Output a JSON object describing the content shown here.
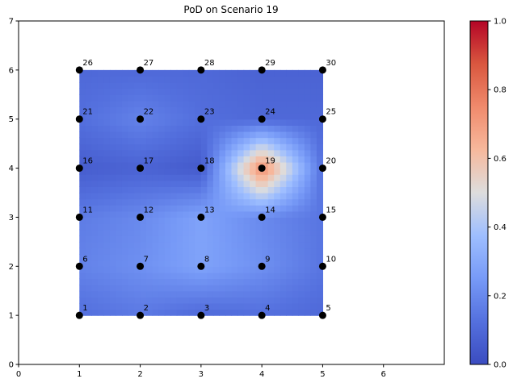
{
  "chart_data": {
    "type": "heatmap",
    "title": "PoD on Scenario 19",
    "xlabel": "",
    "ylabel": "",
    "xlim": [
      0,
      7
    ],
    "ylim": [
      0,
      7
    ],
    "x_ticks": [
      0,
      1,
      2,
      3,
      4,
      5,
      6
    ],
    "y_ticks": [
      0,
      1,
      2,
      3,
      4,
      5,
      6,
      7
    ],
    "grid": false,
    "colormap": "coolwarm",
    "colorbar": {
      "range": [
        0.0,
        1.0
      ],
      "ticks": [
        "0.0",
        "0.2",
        "0.4",
        "0.6",
        "0.8",
        "1.0"
      ],
      "low_color": "#3b4cc0",
      "mid_color": "#dddddd",
      "high_color": "#b40426"
    },
    "x": [
      1,
      2,
      3,
      4,
      5
    ],
    "y": [
      1,
      2,
      3,
      4,
      5,
      6
    ],
    "z": [
      [
        0.12,
        0.15,
        0.1,
        0.12,
        0.1
      ],
      [
        0.18,
        0.22,
        0.28,
        0.22,
        0.14
      ],
      [
        0.16,
        0.2,
        0.28,
        0.2,
        0.14
      ],
      [
        0.06,
        0.08,
        0.05,
        0.75,
        0.12
      ],
      [
        0.12,
        0.18,
        0.12,
        0.1,
        0.1
      ],
      [
        0.1,
        0.1,
        0.1,
        0.08,
        0.08
      ]
    ],
    "points": [
      {
        "label": "1",
        "x": 1,
        "y": 1
      },
      {
        "label": "2",
        "x": 2,
        "y": 1
      },
      {
        "label": "3",
        "x": 3,
        "y": 1
      },
      {
        "label": "4",
        "x": 4,
        "y": 1
      },
      {
        "label": "5",
        "x": 5,
        "y": 1
      },
      {
        "label": "6",
        "x": 1,
        "y": 2
      },
      {
        "label": "7",
        "x": 2,
        "y": 2
      },
      {
        "label": "8",
        "x": 3,
        "y": 2
      },
      {
        "label": "9",
        "x": 4,
        "y": 2
      },
      {
        "label": "10",
        "x": 5,
        "y": 2
      },
      {
        "label": "11",
        "x": 1,
        "y": 3
      },
      {
        "label": "12",
        "x": 2,
        "y": 3
      },
      {
        "label": "13",
        "x": 3,
        "y": 3
      },
      {
        "label": "14",
        "x": 4,
        "y": 3
      },
      {
        "label": "15",
        "x": 5,
        "y": 3
      },
      {
        "label": "16",
        "x": 1,
        "y": 4
      },
      {
        "label": "17",
        "x": 2,
        "y": 4
      },
      {
        "label": "18",
        "x": 3,
        "y": 4
      },
      {
        "label": "19",
        "x": 4,
        "y": 4
      },
      {
        "label": "20",
        "x": 5,
        "y": 4
      },
      {
        "label": "21",
        "x": 1,
        "y": 5
      },
      {
        "label": "22",
        "x": 2,
        "y": 5
      },
      {
        "label": "23",
        "x": 3,
        "y": 5
      },
      {
        "label": "24",
        "x": 4,
        "y": 5
      },
      {
        "label": "25",
        "x": 5,
        "y": 5
      },
      {
        "label": "26",
        "x": 1,
        "y": 6
      },
      {
        "label": "27",
        "x": 2,
        "y": 6
      },
      {
        "label": "28",
        "x": 3,
        "y": 6
      },
      {
        "label": "29",
        "x": 4,
        "y": 6
      },
      {
        "label": "30",
        "x": 5,
        "y": 6
      }
    ]
  }
}
